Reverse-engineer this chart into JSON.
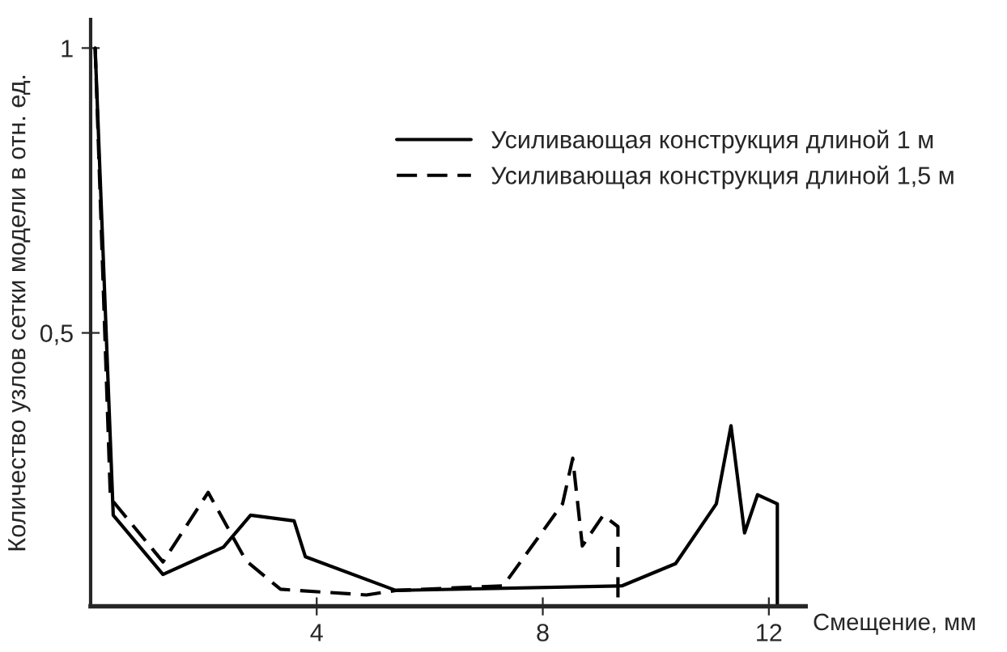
{
  "chart_data": {
    "type": "line",
    "xlabel": "Смещение, мм",
    "ylabel": "Количество узлов сетки модели в отн. ед.",
    "xlim": [
      0,
      12.65
    ],
    "xticks": [
      4,
      8,
      12
    ],
    "ylim": [
      0.02,
      1.05
    ],
    "yticks": [
      {
        "value": 0.5,
        "label": "0,5"
      },
      1
    ],
    "legend": "top right",
    "grid": false,
    "series": [
      {
        "name": "Усиливающая конструкция длиной 1 м",
        "color": "#000000",
        "line_style": "solid",
        "x": [
          0.08,
          0.4,
          1.28,
          2.35,
          2.83,
          3.6,
          3.8,
          5.4,
          9.4,
          10.35,
          11.07,
          11.33,
          11.57,
          11.8,
          12.15,
          12.15
        ],
        "values": [
          1.0,
          0.18,
          0.076,
          0.124,
          0.18,
          0.17,
          0.107,
          0.048,
          0.056,
          0.095,
          0.2,
          0.337,
          0.149,
          0.216,
          0.2,
          0.02
        ]
      },
      {
        "name": "Усиливающая конструкция длиной 1,5 м",
        "color": "#000000",
        "line_style": "dashed",
        "x": [
          0.08,
          0.35,
          1.28,
          2.08,
          2.75,
          3.36,
          4.88,
          5.4,
          7.3,
          8.35,
          8.53,
          8.7,
          9.07,
          9.33,
          9.33
        ],
        "values": [
          1.0,
          0.21,
          0.098,
          0.22,
          0.1,
          0.05,
          0.04,
          0.048,
          0.056,
          0.2,
          0.28,
          0.126,
          0.18,
          0.16,
          0.02
        ]
      }
    ]
  }
}
